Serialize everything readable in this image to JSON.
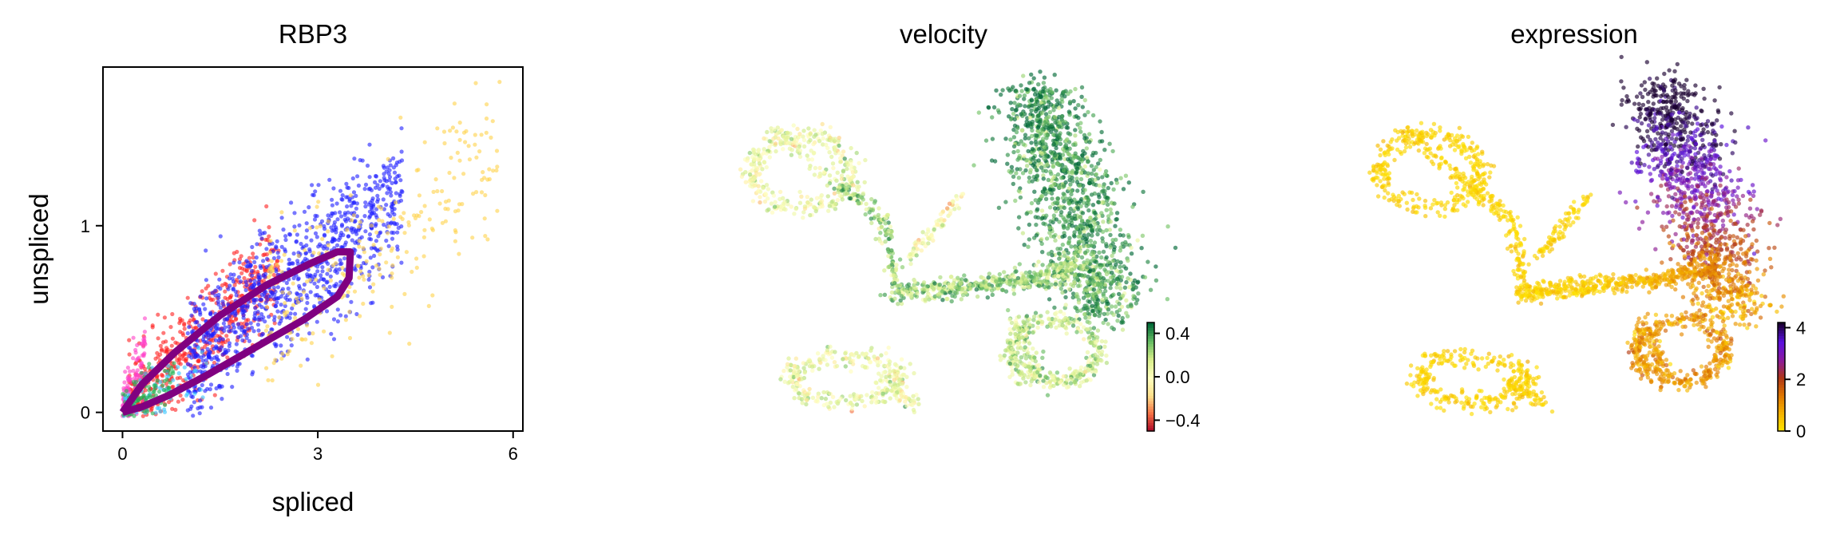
{
  "chart_data": [
    {
      "type": "scatter",
      "title": "RBP3",
      "xlabel": "spliced",
      "ylabel": "unspliced",
      "xlim": [
        -0.3,
        6.15
      ],
      "ylim": [
        -0.1,
        1.85
      ],
      "xticks": [
        0,
        3,
        6
      ],
      "xtick_labels": [
        "0",
        "3",
        "6"
      ],
      "yticks": [
        0,
        1
      ],
      "ytick_labels": [
        "0",
        "1"
      ],
      "grid": false,
      "legend": "none",
      "point_groups": [
        {
          "color": "#ff1e1e",
          "n": 520,
          "x_range": [
            0.1,
            2.4
          ],
          "slope": 0.33,
          "spread": 0.13
        },
        {
          "color": "#1e1eff",
          "n": 950,
          "x_range": [
            1.0,
            4.3
          ],
          "slope": 0.27,
          "spread": 0.17
        },
        {
          "color": "#ffd24a",
          "n": 260,
          "x_range": [
            2.2,
            5.8
          ],
          "slope": 0.23,
          "spread": 0.22
        },
        {
          "color": "#ff40c8",
          "n": 110,
          "x_range": [
            0.0,
            0.35
          ],
          "slope": 0.9,
          "spread": 0.1
        },
        {
          "color": "#33c4ff",
          "n": 70,
          "x_range": [
            0.0,
            1.3
          ],
          "slope": 0.18,
          "spread": 0.08
        },
        {
          "color": "#22b050",
          "n": 90,
          "x_range": [
            0.0,
            0.8
          ],
          "slope": 0.22,
          "spread": 0.07
        }
      ],
      "curve": {
        "color": "#800080",
        "upper": [
          [
            0.0,
            0.0
          ],
          [
            0.3,
            0.15
          ],
          [
            0.8,
            0.32
          ],
          [
            1.5,
            0.52
          ],
          [
            2.2,
            0.68
          ],
          [
            2.9,
            0.8
          ],
          [
            3.3,
            0.86
          ],
          [
            3.5,
            0.86
          ]
        ],
        "lower": [
          [
            3.5,
            0.86
          ],
          [
            3.48,
            0.72
          ],
          [
            3.3,
            0.62
          ],
          [
            2.8,
            0.5
          ],
          [
            2.0,
            0.34
          ],
          [
            1.3,
            0.2
          ],
          [
            0.7,
            0.09
          ],
          [
            0.3,
            0.03
          ],
          [
            0.0,
            0.0
          ]
        ]
      }
    },
    {
      "type": "scatter",
      "title": "velocity",
      "colorbar": {
        "ticks": [
          0.4,
          0.0,
          -0.4
        ],
        "tick_labels": [
          "0.4",
          "0.0",
          "−0.4"
        ],
        "range": [
          -0.5,
          0.5
        ],
        "colors": [
          "#a50026",
          "#f46d43",
          "#fee08b",
          "#ffffbf",
          "#d9ef8b",
          "#66bd63",
          "#006837"
        ]
      }
    },
    {
      "type": "scatter",
      "title": "expression",
      "colorbar": {
        "ticks": [
          4,
          2,
          0
        ],
        "tick_labels": [
          "4",
          "2",
          "0"
        ],
        "range": [
          0,
          4.2
        ],
        "colors": [
          "#ffe800",
          "#f5b400",
          "#e07800",
          "#b03818",
          "#8a1aa0",
          "#5a10e0",
          "#1a0030"
        ]
      }
    }
  ]
}
